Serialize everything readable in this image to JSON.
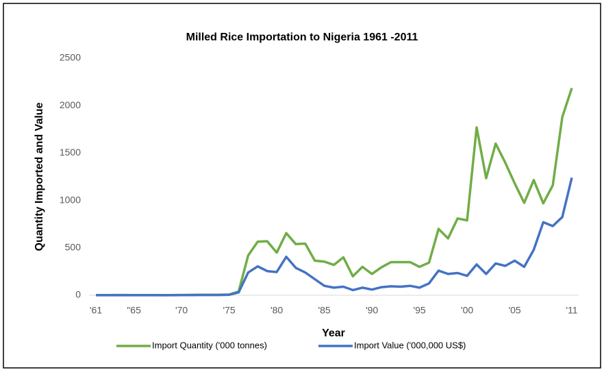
{
  "chart_data": {
    "type": "line",
    "title": "Milled Rice Importation to Nigeria 1961 -2011",
    "x_label": "Year",
    "y_label": "Quantity Imported  and  Value",
    "categories": [
      "'61",
      null,
      null,
      null,
      "\"65",
      null,
      null,
      null,
      null,
      "'70",
      null,
      null,
      null,
      null,
      "'75",
      null,
      null,
      null,
      null,
      "'80",
      null,
      null,
      null,
      null,
      "'85",
      null,
      null,
      null,
      null,
      "'90",
      null,
      null,
      null,
      null,
      "'95",
      null,
      null,
      null,
      null,
      "'00",
      null,
      null,
      null,
      null,
      "'05",
      null,
      null,
      null,
      null,
      null,
      "'11"
    ],
    "series": [
      {
        "name": "Import Quantity ('000 tonnes)",
        "color": "#70ad47",
        "values": [
          2,
          2,
          3,
          3,
          2,
          2,
          2,
          1,
          2,
          3,
          4,
          6,
          5,
          6,
          8,
          40,
          420,
          565,
          570,
          450,
          655,
          540,
          545,
          365,
          355,
          320,
          400,
          200,
          300,
          225,
          295,
          350,
          350,
          350,
          300,
          345,
          700,
          600,
          810,
          790,
          1770,
          1235,
          1600,
          1400,
          1180,
          975,
          1215,
          970,
          1160,
          1880,
          2185
        ]
      },
      {
        "name": "Import Value ('000,000 US$)",
        "color": "#4472c4",
        "values": [
          1,
          1,
          1,
          1,
          1,
          1,
          1,
          1,
          1,
          2,
          2,
          3,
          3,
          3,
          5,
          30,
          240,
          305,
          255,
          245,
          405,
          290,
          240,
          170,
          100,
          80,
          90,
          55,
          80,
          60,
          85,
          95,
          90,
          100,
          80,
          125,
          260,
          225,
          235,
          205,
          325,
          225,
          335,
          310,
          365,
          300,
          480,
          770,
          730,
          825,
          1240
        ]
      }
    ],
    "ylim": [
      0,
      2500
    ],
    "yticks": [
      0,
      500,
      1000,
      1500,
      2000,
      2500
    ],
    "grid": false,
    "legend": "bottom"
  }
}
